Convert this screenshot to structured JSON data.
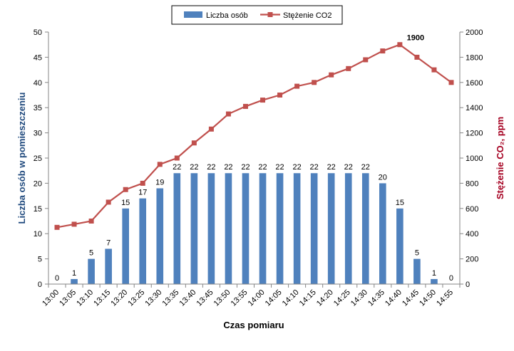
{
  "chart_data": {
    "type": "bar+line",
    "title": "",
    "xlabel": "Czas pomiaru",
    "ylabel_left": "Liczba osób w pomieszczeniu",
    "ylabel_right": "Stężenie CO₂, ppm",
    "categories": [
      "13:00",
      "13:05",
      "13:10",
      "13:15",
      "13:20",
      "13:25",
      "13:30",
      "13:35",
      "13:40",
      "13:45",
      "13:50",
      "13:55",
      "14:00",
      "14:05",
      "14:10",
      "14:15",
      "14:20",
      "14:25",
      "14:30",
      "14:35",
      "14:40",
      "14:45",
      "14:50",
      "14:55"
    ],
    "series": [
      {
        "name": "Liczba osób",
        "type": "bar",
        "axis": "left",
        "color": "#4F81BD",
        "values": [
          0,
          1,
          5,
          7,
          15,
          17,
          19,
          22,
          22,
          22,
          22,
          22,
          22,
          22,
          22,
          22,
          22,
          22,
          22,
          20,
          15,
          5,
          1,
          0
        ]
      },
      {
        "name": "Stężenie CO2",
        "type": "line",
        "axis": "right",
        "color": "#C0504D",
        "values": [
          450,
          475,
          500,
          650,
          750,
          800,
          950,
          1000,
          1120,
          1230,
          1350,
          1410,
          1460,
          1500,
          1570,
          1600,
          1660,
          1710,
          1780,
          1850,
          1900,
          1800,
          1700,
          1600
        ],
        "annotations": [
          {
            "index": 20,
            "text": "1900"
          }
        ]
      }
    ],
    "ylim_left": [
      0,
      50
    ],
    "yticks_left": [
      0,
      5,
      10,
      15,
      20,
      25,
      30,
      35,
      40,
      45,
      50
    ],
    "ylim_right": [
      0,
      2000
    ],
    "yticks_right": [
      0,
      200,
      400,
      600,
      800,
      1000,
      1200,
      1400,
      1600,
      1800,
      2000
    ],
    "grid": false,
    "legend_position": "top-center",
    "colors": {
      "left_axis": "#1F497D",
      "right_axis": "#A50021",
      "axis_line": "#868686"
    }
  }
}
